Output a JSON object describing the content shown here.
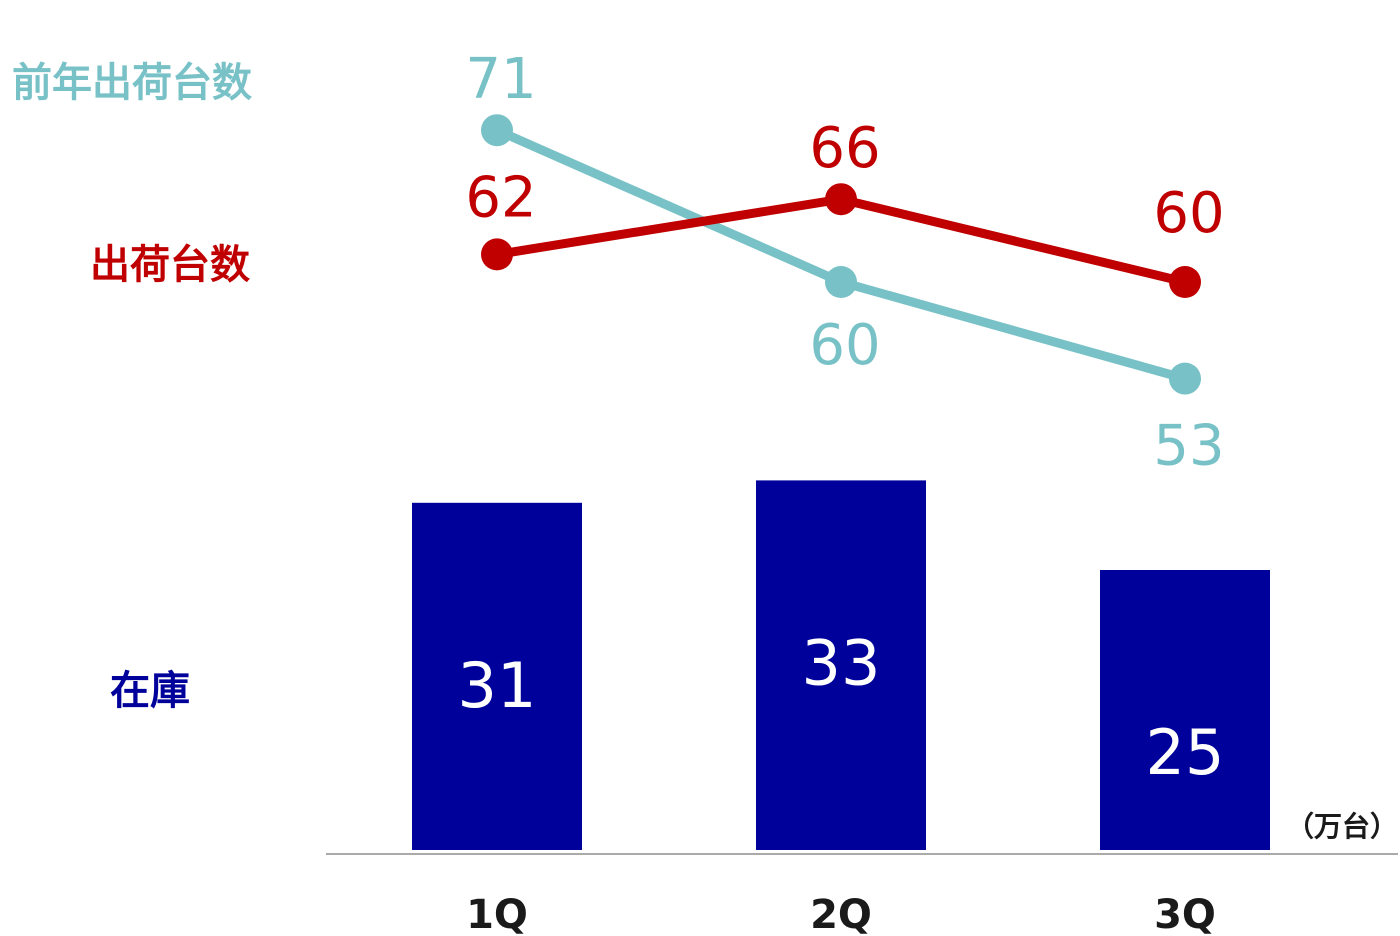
{
  "colors": {
    "prev_year": "#78c2c7",
    "shipments": "#c00000",
    "inventory": "#00009a",
    "axis": "#aaaaaa"
  },
  "chart_data": {
    "type": "bar",
    "categories": [
      "1Q",
      "2Q",
      "3Q"
    ],
    "unit": "（万台）",
    "series": [
      {
        "name": "前年出荷台数",
        "type": "line",
        "values": [
          71,
          60,
          53
        ]
      },
      {
        "name": "出荷台数",
        "type": "line",
        "values": [
          62,
          66,
          60
        ]
      },
      {
        "name": "在庫",
        "type": "bar",
        "values": [
          31,
          33,
          25
        ]
      }
    ]
  }
}
